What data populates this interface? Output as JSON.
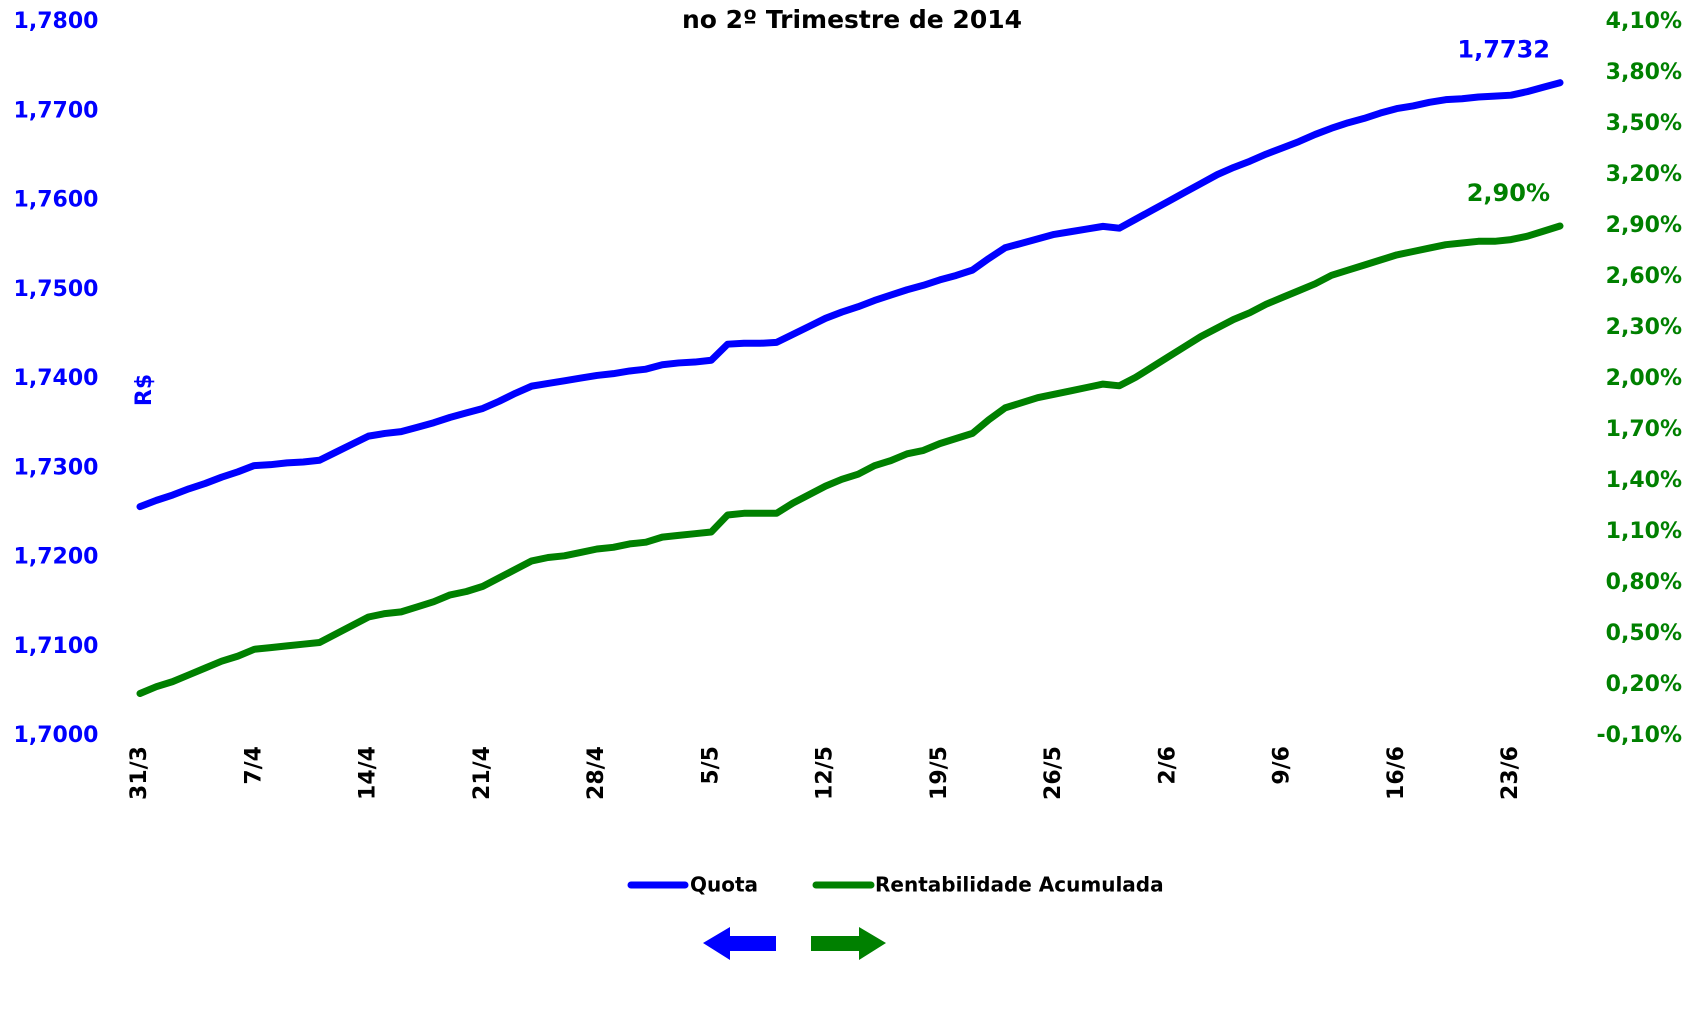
{
  "chart_data": {
    "type": "line",
    "title": "no 2º Trimestre de 2014",
    "y_label": "R$",
    "categories": [
      "31/3",
      null,
      null,
      null,
      null,
      null,
      null,
      "7/4",
      null,
      null,
      null,
      null,
      null,
      null,
      "14/4",
      null,
      null,
      null,
      null,
      null,
      null,
      "21/4",
      null,
      null,
      null,
      null,
      null,
      null,
      "28/4",
      null,
      null,
      null,
      null,
      null,
      null,
      "5/5",
      null,
      null,
      null,
      null,
      null,
      null,
      "12/5",
      null,
      null,
      null,
      null,
      null,
      null,
      "19/5",
      null,
      null,
      null,
      null,
      null,
      null,
      "26/5",
      null,
      null,
      null,
      null,
      null,
      null,
      "2/6",
      null,
      null,
      null,
      null,
      null,
      null,
      "9/6",
      null,
      null,
      null,
      null,
      null,
      null,
      "16/6",
      null,
      null,
      null,
      null,
      null,
      null,
      "23/6",
      null,
      null,
      null
    ],
    "series": [
      {
        "name": "Quota",
        "color": "#0000ff",
        "axis": "y",
        "values": [
          1.7257,
          1.7264,
          1.727,
          1.7277,
          1.7283,
          1.729,
          1.7296,
          1.7303,
          1.7304,
          1.7306,
          1.7307,
          1.7309,
          1.7318,
          1.7327,
          1.7336,
          1.7339,
          1.7341,
          1.7346,
          1.7351,
          1.7357,
          1.7362,
          1.7367,
          1.7375,
          1.7384,
          1.7392,
          1.7395,
          1.7398,
          1.7401,
          1.7404,
          1.7406,
          1.7409,
          1.7411,
          1.7416,
          1.7418,
          1.7419,
          1.7421,
          1.7439,
          1.744,
          1.744,
          1.7441,
          1.745,
          1.7459,
          1.7468,
          1.7475,
          1.7481,
          1.7488,
          1.7494,
          1.75,
          1.7505,
          1.7511,
          1.7516,
          1.7522,
          1.7535,
          1.7547,
          1.7552,
          1.7557,
          1.7562,
          1.7565,
          1.7568,
          1.7571,
          1.7569,
          1.7579,
          1.7589,
          1.7599,
          1.7609,
          1.7619,
          1.7629,
          1.7637,
          1.7644,
          1.7652,
          1.7659,
          1.7666,
          1.7674,
          1.7681,
          1.7687,
          1.7692,
          1.7698,
          1.7703,
          1.7706,
          1.771,
          1.7713,
          1.7714,
          1.7716,
          1.7717,
          1.7718,
          1.7722,
          1.7727,
          1.7732
        ],
        "value_labels": [
          null,
          null,
          null,
          null,
          null,
          null,
          null,
          null,
          null,
          null,
          null,
          null,
          null,
          null,
          null,
          null,
          null,
          null,
          null,
          null,
          null,
          null,
          null,
          null,
          null,
          null,
          null,
          null,
          null,
          null,
          null,
          null,
          null,
          null,
          null,
          null,
          null,
          null,
          null,
          null,
          null,
          null,
          null,
          null,
          null,
          null,
          null,
          null,
          null,
          null,
          null,
          null,
          null,
          null,
          null,
          null,
          null,
          null,
          null,
          null,
          null,
          null,
          null,
          null,
          null,
          null,
          null,
          null,
          null,
          null,
          null,
          null,
          null,
          null,
          null,
          null,
          null,
          null,
          null,
          null,
          null,
          null,
          null,
          null,
          null,
          null,
          null,
          "1,7732"
        ]
      },
      {
        "name": "Rentabilidade Acumulada",
        "color": "#008000",
        "axis": "y2",
        "values": [
          0.15,
          0.19,
          0.22,
          0.26,
          0.3,
          0.34,
          0.37,
          0.41,
          0.42,
          0.43,
          0.44,
          0.45,
          0.5,
          0.55,
          0.6,
          0.62,
          0.63,
          0.66,
          0.69,
          0.73,
          0.75,
          0.78,
          0.83,
          0.88,
          0.93,
          0.95,
          0.96,
          0.98,
          1.0,
          1.01,
          1.03,
          1.04,
          1.07,
          1.08,
          1.09,
          1.1,
          1.2,
          1.21,
          1.21,
          1.21,
          1.27,
          1.32,
          1.37,
          1.41,
          1.44,
          1.49,
          1.52,
          1.56,
          1.58,
          1.62,
          1.65,
          1.68,
          1.76,
          1.83,
          1.86,
          1.89,
          1.91,
          1.93,
          1.95,
          1.97,
          1.96,
          2.01,
          2.07,
          2.13,
          2.19,
          2.25,
          2.3,
          2.35,
          2.39,
          2.44,
          2.48,
          2.52,
          2.56,
          2.61,
          2.64,
          2.67,
          2.7,
          2.73,
          2.75,
          2.77,
          2.79,
          2.8,
          2.81,
          2.81,
          2.82,
          2.84,
          2.87,
          2.9
        ],
        "value_labels": [
          null,
          null,
          null,
          null,
          null,
          null,
          null,
          null,
          null,
          null,
          null,
          null,
          null,
          null,
          null,
          null,
          null,
          null,
          null,
          null,
          null,
          null,
          null,
          null,
          null,
          null,
          null,
          null,
          null,
          null,
          null,
          null,
          null,
          null,
          null,
          null,
          null,
          null,
          null,
          null,
          null,
          null,
          null,
          null,
          null,
          null,
          null,
          null,
          null,
          null,
          null,
          null,
          null,
          null,
          null,
          null,
          null,
          null,
          null,
          null,
          null,
          null,
          null,
          null,
          null,
          null,
          null,
          null,
          null,
          null,
          null,
          null,
          null,
          null,
          null,
          null,
          null,
          null,
          null,
          null,
          null,
          null,
          null,
          null,
          null,
          null,
          null,
          "2,90%"
        ]
      }
    ],
    "ylim": [
      1.7,
      1.78
    ],
    "yticks": [
      {
        "value": 1.7,
        "label": "1,7000"
      },
      {
        "value": 1.71,
        "label": "1,7100"
      },
      {
        "value": 1.72,
        "label": "1,7200"
      },
      {
        "value": 1.73,
        "label": "1,7300"
      },
      {
        "value": 1.74,
        "label": "1,7400"
      },
      {
        "value": 1.75,
        "label": "1,7500"
      },
      {
        "value": 1.76,
        "label": "1,7600"
      },
      {
        "value": 1.77,
        "label": "1,7700"
      },
      {
        "value": 1.78,
        "label": "1,7800"
      }
    ],
    "y2lim": [
      -0.1,
      4.1
    ],
    "y2ticks": [
      {
        "value": -0.1,
        "label": "-0,10%"
      },
      {
        "value": 0.2,
        "label": "0,20%"
      },
      {
        "value": 0.5,
        "label": "0,50%"
      },
      {
        "value": 0.8,
        "label": "0,80%"
      },
      {
        "value": 1.1,
        "label": "1,10%"
      },
      {
        "value": 1.4,
        "label": "1,40%"
      },
      {
        "value": 1.7,
        "label": "1,70%"
      },
      {
        "value": 2.0,
        "label": "2,00%"
      },
      {
        "value": 2.3,
        "label": "2,30%"
      },
      {
        "value": 2.6,
        "label": "2,60%"
      },
      {
        "value": 2.9,
        "label": "2,90%"
      },
      {
        "value": 3.2,
        "label": "3,20%"
      },
      {
        "value": 3.5,
        "label": "3,50%"
      },
      {
        "value": 3.8,
        "label": "3,80%"
      },
      {
        "value": 4.1,
        "label": "4,10%"
      }
    ],
    "grid": false,
    "legend": "bottom"
  }
}
